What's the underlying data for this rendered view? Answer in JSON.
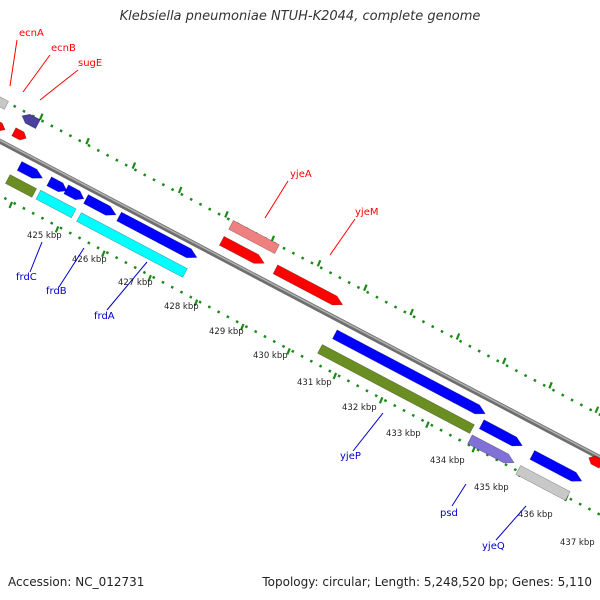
{
  "title": "Klebsiella pneumoniae NTUH-K2044, complete genome",
  "footer": {
    "accession": "Accession: NC_012731",
    "summary": "Topology: circular; Length: 5,248,520 bp; Genes: 5,110"
  },
  "colors": {
    "backbone": "#8a8a8a",
    "tick": "#1a8a1a",
    "red": "#ff0000",
    "pink": "#f08080",
    "blue": "#0000ff",
    "navy": "#4b3fa0",
    "cyan": "#00ffff",
    "olive": "#6b8e23",
    "lavender": "#8070d8",
    "gray": "#c8c8c8",
    "label_red": "#ff0000",
    "label_blue": "#0000cc"
  },
  "ticks": [
    "425 kbp",
    "426 kbp",
    "427 kbp",
    "428 kbp",
    "429 kbp",
    "430 kbp",
    "431 kbp",
    "432 kbp",
    "433 kbp",
    "434 kbp",
    "435 kbp",
    "436 kbp",
    "437 kbp"
  ],
  "gene_labels": {
    "ecnA": "ecnA",
    "ecnB": "ecnB",
    "sugE": "sugE",
    "yjeA": "yjeA",
    "yjeM": "yjeM",
    "frdC": "frdC",
    "frdB": "frdB",
    "frdA": "frdA",
    "yjeP": "yjeP",
    "psd": "psd",
    "yjeQ": "yjeQ"
  }
}
